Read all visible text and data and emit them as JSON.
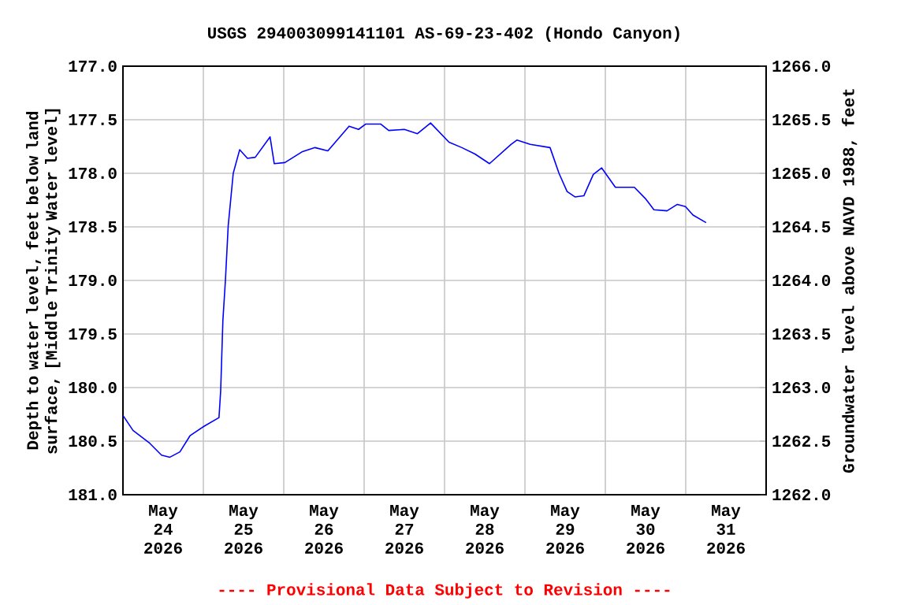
{
  "chart_data": {
    "type": "line",
    "title": "USGS 294003099141101 AS-69-23-402 (Hondo Canyon)",
    "ylabel": "Depth to water level, feet below land surface, [Middle Trinity Water level]",
    "y2label": "Groundwater level above NAVD 1988, feet",
    "annotations": [
      "---- Provisional Data Subject to Revision ----"
    ],
    "color": "#0000ff",
    "x": [
      "2026-05-24T00:00",
      "2026-05-24T03:00",
      "2026-05-24T08:00",
      "2026-05-24T11:30",
      "2026-05-24T14:00",
      "2026-05-24T17:00",
      "2026-05-24T20:00",
      "2026-05-25T00:15",
      "2026-05-25T04:40",
      "2026-05-25T05:10",
      "2026-05-25T05:50",
      "2026-05-25T06:35",
      "2026-05-25T07:25",
      "2026-05-25T08:55",
      "2026-05-25T10:50",
      "2026-05-25T13:10",
      "2026-05-25T15:30",
      "2026-05-25T19:55",
      "2026-05-25T21:10",
      "2026-05-26T00:20",
      "2026-05-26T05:25",
      "2026-05-26T09:20",
      "2026-05-26T13:10",
      "2026-05-26T19:30",
      "2026-05-26T22:20",
      "2026-05-27T00:30",
      "2026-05-27T04:55",
      "2026-05-27T07:20",
      "2026-05-27T12:00",
      "2026-05-27T15:55",
      "2026-05-27T19:50",
      "2026-05-28T01:20",
      "2026-05-28T05:10",
      "2026-05-28T09:05",
      "2026-05-28T13:25",
      "2026-05-28T19:50",
      "2026-05-28T21:35",
      "2026-05-29T01:35",
      "2026-05-29T07:30",
      "2026-05-29T10:10",
      "2026-05-29T12:35",
      "2026-05-29T14:55",
      "2026-05-29T17:35",
      "2026-05-29T20:25",
      "2026-05-29T22:55",
      "2026-05-30T03:00",
      "2026-05-30T08:40",
      "2026-05-30T12:05",
      "2026-05-30T14:30",
      "2026-05-30T18:25",
      "2026-05-30T21:30",
      "2026-05-30T23:55",
      "2026-05-31T02:10",
      "2026-05-31T06:05"
    ],
    "values": [
      180.26,
      180.4,
      180.52,
      180.63,
      180.65,
      180.6,
      180.45,
      180.36,
      180.28,
      180.03,
      179.37,
      179.0,
      178.49,
      178.0,
      177.78,
      177.86,
      177.85,
      177.66,
      177.91,
      177.9,
      177.8,
      177.76,
      177.79,
      177.56,
      177.59,
      177.54,
      177.54,
      177.6,
      177.59,
      177.63,
      177.53,
      177.71,
      177.76,
      177.82,
      177.91,
      177.73,
      177.69,
      177.73,
      177.76,
      178.0,
      178.17,
      178.22,
      178.21,
      178.01,
      177.95,
      178.13,
      178.13,
      178.24,
      178.34,
      178.35,
      178.29,
      178.31,
      178.39,
      178.46
    ],
    "xlim": [
      "2026-05-24T00:00",
      "2026-06-01T00:00"
    ],
    "xticks": [
      {
        "value": "2026-05-24T00:00",
        "label": null
      },
      {
        "value": "2026-05-24T12:00",
        "label": "May 24 2026"
      },
      {
        "value": "2026-05-25T00:00",
        "label": null
      },
      {
        "value": "2026-05-25T12:00",
        "label": "May 25 2026"
      },
      {
        "value": "2026-05-26T00:00",
        "label": null
      },
      {
        "value": "2026-05-26T12:00",
        "label": "May 26 2026"
      },
      {
        "value": "2026-05-27T00:00",
        "label": null
      },
      {
        "value": "2026-05-27T12:00",
        "label": "May 27 2026"
      },
      {
        "value": "2026-05-28T00:00",
        "label": null
      },
      {
        "value": "2026-05-28T12:00",
        "label": "May 28 2026"
      },
      {
        "value": "2026-05-29T00:00",
        "label": null
      },
      {
        "value": "2026-05-29T12:00",
        "label": "May 29 2026"
      },
      {
        "value": "2026-05-30T00:00",
        "label": null
      },
      {
        "value": "2026-05-30T12:00",
        "label": "May 30 2026"
      },
      {
        "value": "2026-05-31T00:00",
        "label": null
      },
      {
        "value": "2026-05-31T12:00",
        "label": "May 31 2026"
      },
      {
        "value": "2026-06-01T00:00",
        "label": null
      }
    ],
    "ylim": [
      181,
      177
    ],
    "yticks": [
      {
        "value": 177,
        "label": "177.0"
      },
      {
        "value": 177.5,
        "label": "177.5"
      },
      {
        "value": 178,
        "label": "178.0"
      },
      {
        "value": 178.5,
        "label": "178.5"
      },
      {
        "value": 179,
        "label": "179.0"
      },
      {
        "value": 179.5,
        "label": "179.5"
      },
      {
        "value": 180,
        "label": "180.0"
      },
      {
        "value": 180.5,
        "label": "180.5"
      },
      {
        "value": 181,
        "label": "181.0"
      }
    ],
    "y2lim": [
      1262,
      1266
    ],
    "y2ticks": [
      {
        "value": 1262,
        "label": "1262.0"
      },
      {
        "value": 1262.5,
        "label": "1262.5"
      },
      {
        "value": 1263,
        "label": "1263.0"
      },
      {
        "value": 1263.5,
        "label": "1263.5"
      },
      {
        "value": 1264,
        "label": "1264.0"
      },
      {
        "value": 1264.5,
        "label": "1264.5"
      },
      {
        "value": 1265,
        "label": "1265.0"
      },
      {
        "value": 1265.5,
        "label": "1265.5"
      },
      {
        "value": 1266,
        "label": "1266.0"
      }
    ],
    "grid": true
  }
}
